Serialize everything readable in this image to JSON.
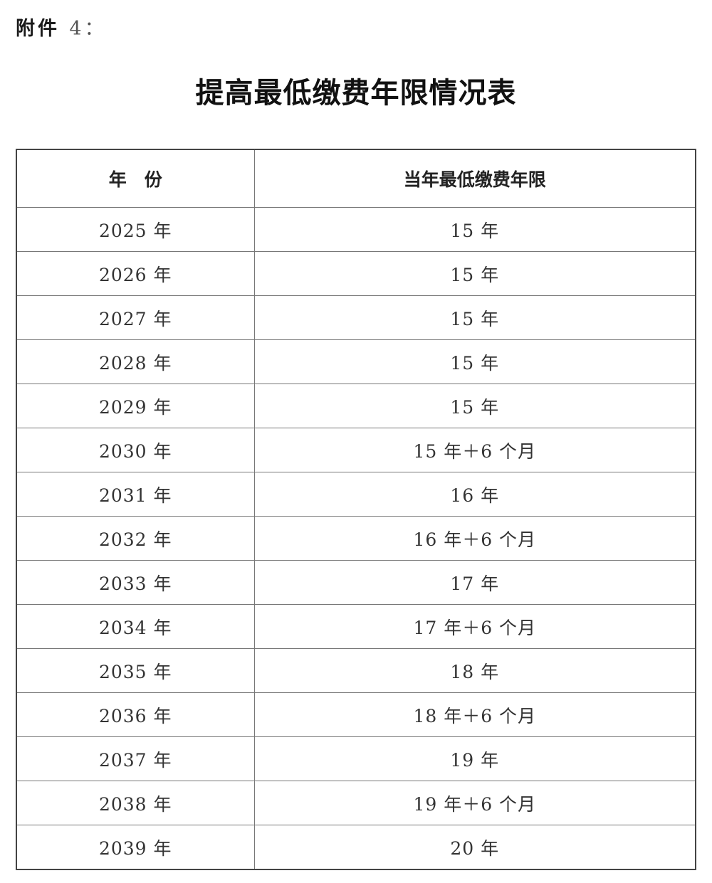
{
  "attachment_label": "附件",
  "attachment_number": "4：",
  "title": "提高最低缴费年限情况表",
  "table": {
    "headers": [
      "年　份",
      "当年最低缴费年限"
    ],
    "rows": [
      [
        "2025 年",
        "15 年"
      ],
      [
        "2026 年",
        "15 年"
      ],
      [
        "2027 年",
        "15 年"
      ],
      [
        "2028 年",
        "15 年"
      ],
      [
        "2029 年",
        "15 年"
      ],
      [
        "2030 年",
        "15 年＋6 个月"
      ],
      [
        "2031 年",
        "16 年"
      ],
      [
        "2032 年",
        "16 年＋6 个月"
      ],
      [
        "2033 年",
        "17 年"
      ],
      [
        "2034 年",
        "17 年＋6 个月"
      ],
      [
        "2035 年",
        "18 年"
      ],
      [
        "2036 年",
        "18 年＋6 个月"
      ],
      [
        "2037 年",
        "19 年"
      ],
      [
        "2038 年",
        "19 年＋6 个月"
      ],
      [
        "2039 年",
        "20 年"
      ]
    ]
  }
}
